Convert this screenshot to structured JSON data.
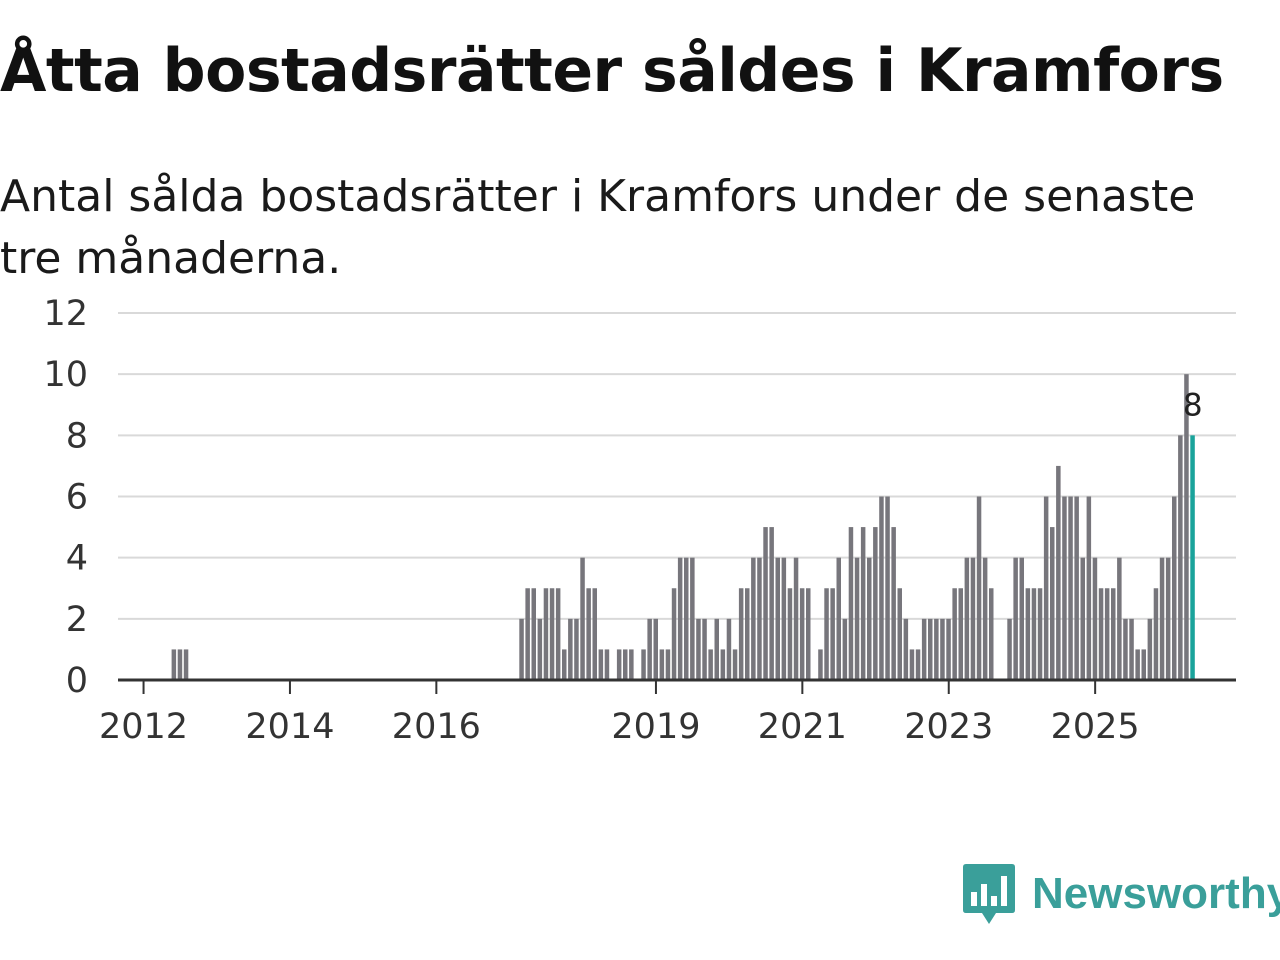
{
  "page": {
    "title": "Åtta bostadsrätter såldes i Kramfors",
    "subtitle": "Antal sålda bostadsrätter i Kramfors under de senaste tre månaderna."
  },
  "brand": {
    "name": "Newsworthy",
    "icon": "newsworthy-logo-icon",
    "color": "#3a9f9a"
  },
  "colors": {
    "bar": "#77767c",
    "highlight": "#1aa39b",
    "grid": "#d9d9d9",
    "axis": "#333333"
  },
  "chart_data": {
    "type": "bar",
    "title": "Åtta bostadsrätter såldes i Kramfors",
    "subtitle": "Antal sålda bostadsrätter i Kramfors under de senaste tre månaderna.",
    "xlabel": "",
    "ylabel": "",
    "ylim": [
      0,
      12
    ],
    "y_ticks": [
      0,
      2,
      4,
      6,
      8,
      10,
      12
    ],
    "x_ticks": [
      {
        "label": "2012",
        "index": 4
      },
      {
        "label": "2014",
        "index": 28
      },
      {
        "label": "2016",
        "index": 52
      },
      {
        "label": "2019",
        "index": 88
      },
      {
        "label": "2021",
        "index": 112
      },
      {
        "label": "2023",
        "index": 136
      },
      {
        "label": "2025",
        "index": 160
      }
    ],
    "grid": true,
    "start_month": "2011-09",
    "frequency": "monthly",
    "values": [
      0,
      0,
      0,
      0,
      0,
      0,
      0,
      0,
      0,
      1,
      1,
      1,
      0,
      0,
      0,
      0,
      0,
      0,
      0,
      0,
      0,
      0,
      0,
      0,
      0,
      0,
      0,
      0,
      0,
      0,
      0,
      0,
      0,
      0,
      0,
      0,
      0,
      0,
      0,
      0,
      0,
      0,
      0,
      0,
      0,
      0,
      0,
      0,
      0,
      0,
      0,
      0,
      0,
      0,
      0,
      0,
      0,
      0,
      0,
      0,
      0,
      0,
      0,
      0,
      0,
      0,
      2,
      3,
      3,
      2,
      3,
      3,
      3,
      1,
      2,
      2,
      4,
      3,
      3,
      1,
      1,
      0,
      1,
      1,
      1,
      0,
      1,
      2,
      2,
      1,
      1,
      3,
      4,
      4,
      4,
      2,
      2,
      1,
      2,
      1,
      2,
      1,
      3,
      3,
      4,
      4,
      5,
      5,
      4,
      4,
      3,
      4,
      3,
      3,
      0,
      1,
      3,
      3,
      4,
      2,
      5,
      4,
      5,
      4,
      5,
      6,
      6,
      5,
      3,
      2,
      1,
      1,
      2,
      2,
      2,
      2,
      2,
      3,
      3,
      4,
      4,
      6,
      4,
      3,
      0,
      0,
      2,
      4,
      4,
      3,
      3,
      3,
      6,
      5,
      7,
      6,
      6,
      6,
      4,
      6,
      4,
      3,
      3,
      3,
      4,
      2,
      2,
      1,
      1,
      2,
      3,
      4,
      4,
      6,
      8,
      10,
      8
    ],
    "highlight_index": 176,
    "highlight_label": "8",
    "legend": "none"
  }
}
